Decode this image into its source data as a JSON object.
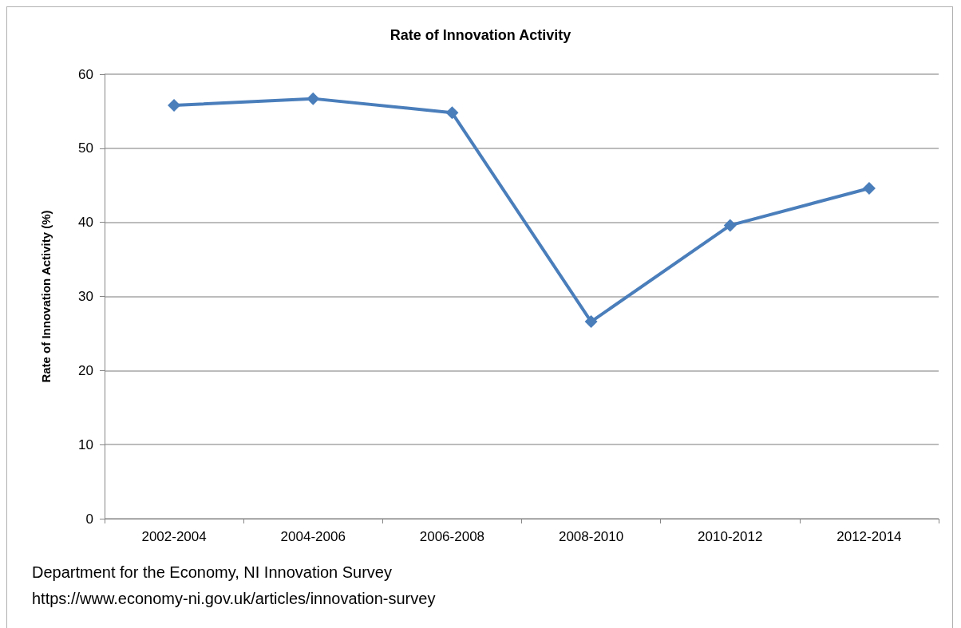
{
  "chart_data": {
    "type": "line",
    "title": "Rate of Innovation Activity",
    "ylabel": "Rate of Innovation Activity (%)",
    "categories": [
      "2002-2004",
      "2004-2006",
      "2006-2008",
      "2008-2010",
      "2010-2012",
      "2012-2014"
    ],
    "series": [
      {
        "color": "#4a7ebb",
        "values": [
          55.8,
          56.7,
          54.8,
          26.6,
          39.6,
          44.6
        ]
      }
    ],
    "ylim": [
      0,
      60
    ],
    "yticks": [
      0,
      10,
      20,
      30,
      40,
      50,
      60
    ],
    "grid": "y",
    "marker": "diamond",
    "line_style": "solid",
    "annotations": [
      "Department for the Economy, NI Innovation Survey",
      "https://www.economy-ni.gov.uk/articles/innovation-survey"
    ]
  }
}
